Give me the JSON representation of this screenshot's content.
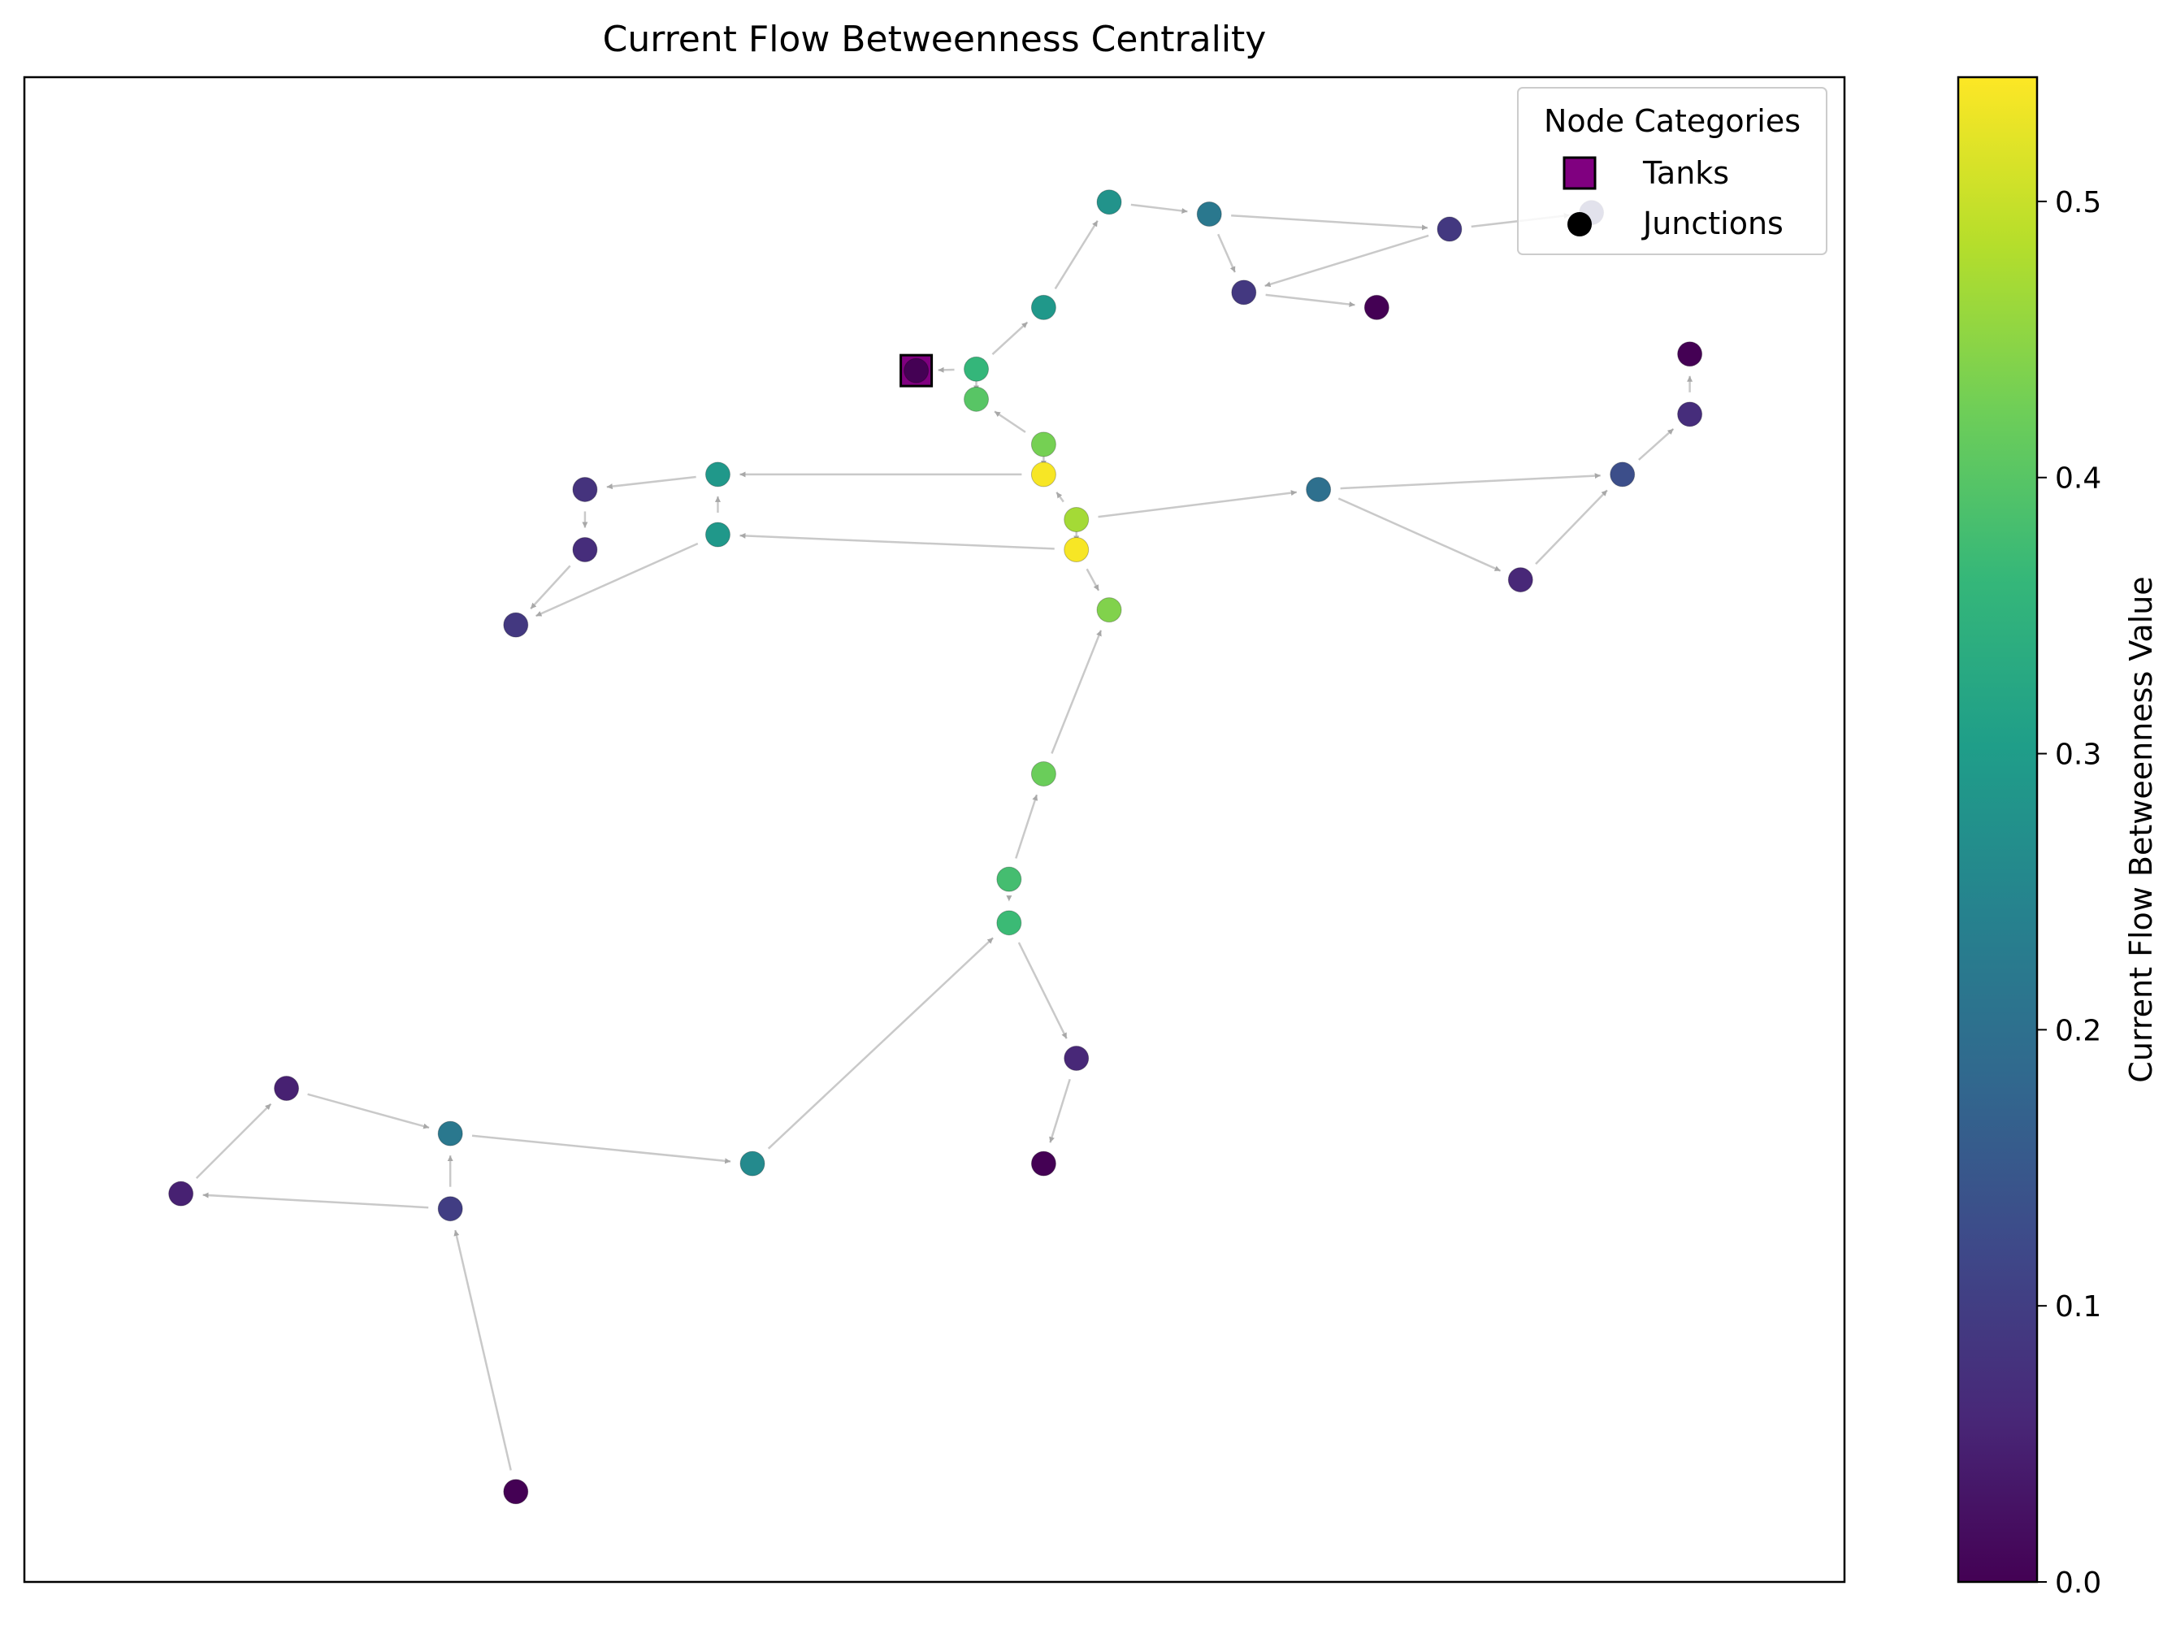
{
  "chart_data": {
    "type": "scatter",
    "subtype": "directed-network-graph",
    "title": "Current Flow Betweenness Centrality",
    "xlabel": "",
    "ylabel": "",
    "axes_ticks": false,
    "colormap": "viridis",
    "colormap_stops": [
      "#440154",
      "#482878",
      "#3e4989",
      "#31688e",
      "#26828e",
      "#1f9e89",
      "#35b779",
      "#6ece58",
      "#b5de2b",
      "#fde725"
    ],
    "colorbar": {
      "label": "Current Flow Betweenness Value",
      "range": [
        0.0,
        0.545
      ],
      "ticks": [
        0.0,
        0.1,
        0.2,
        0.3,
        0.4,
        0.5
      ],
      "tick_labels": [
        "0.0",
        "0.1",
        "0.2",
        "0.3",
        "0.4",
        "0.5"
      ]
    },
    "legend": {
      "title": "Node Categories",
      "placement": "top-right",
      "entries": [
        {
          "label": "Tanks",
          "marker": "square",
          "color": "#800080"
        },
        {
          "label": "Junctions",
          "marker": "circle",
          "color": "#000000"
        }
      ]
    },
    "edge_color": "#bbbbbb",
    "tank_border_color": "#000000",
    "xlim": [
      0,
      100
    ],
    "ylim": [
      0,
      100
    ],
    "nodes": [
      {
        "id": "t1",
        "x": 49.0,
        "y": 80.5,
        "value": 0.0,
        "category": "tank"
      },
      {
        "id": "n1",
        "x": 59.6,
        "y": 91.7,
        "value": 0.28
      },
      {
        "id": "n2",
        "x": 65.1,
        "y": 90.9,
        "value": 0.22
      },
      {
        "id": "n3",
        "x": 78.3,
        "y": 89.9,
        "value": 0.09
      },
      {
        "id": "n4",
        "x": 86.1,
        "y": 91.0,
        "value": 0.1
      },
      {
        "id": "n5",
        "x": 67.0,
        "y": 85.7,
        "value": 0.09
      },
      {
        "id": "n6",
        "x": 74.3,
        "y": 84.7,
        "value": 0.0
      },
      {
        "id": "n7",
        "x": 56.0,
        "y": 84.7,
        "value": 0.29
      },
      {
        "id": "n8",
        "x": 52.3,
        "y": 80.6,
        "value": 0.36
      },
      {
        "id": "n9",
        "x": 52.3,
        "y": 78.6,
        "value": 0.4
      },
      {
        "id": "n10",
        "x": 56.0,
        "y": 75.6,
        "value": 0.43
      },
      {
        "id": "n11",
        "x": 56.0,
        "y": 73.6,
        "value": 0.54
      },
      {
        "id": "n12",
        "x": 57.8,
        "y": 70.6,
        "value": 0.47
      },
      {
        "id": "n13",
        "x": 57.8,
        "y": 68.6,
        "value": 0.54
      },
      {
        "id": "n14",
        "x": 59.6,
        "y": 64.6,
        "value": 0.44
      },
      {
        "id": "n15",
        "x": 56.0,
        "y": 53.7,
        "value": 0.42
      },
      {
        "id": "n16",
        "x": 54.1,
        "y": 46.7,
        "value": 0.38
      },
      {
        "id": "n17",
        "x": 54.1,
        "y": 43.8,
        "value": 0.37
      },
      {
        "id": "n18",
        "x": 57.8,
        "y": 34.8,
        "value": 0.06
      },
      {
        "id": "n19",
        "x": 56.0,
        "y": 27.8,
        "value": 0.0
      },
      {
        "id": "n20",
        "x": 40.0,
        "y": 27.8,
        "value": 0.26
      },
      {
        "id": "n21",
        "x": 23.4,
        "y": 29.8,
        "value": 0.22
      },
      {
        "id": "n22",
        "x": 14.4,
        "y": 32.8,
        "value": 0.05
      },
      {
        "id": "n23",
        "x": 8.6,
        "y": 25.8,
        "value": 0.05
      },
      {
        "id": "n24",
        "x": 23.4,
        "y": 24.8,
        "value": 0.1
      },
      {
        "id": "n25",
        "x": 27.0,
        "y": 6.0,
        "value": 0.0
      },
      {
        "id": "n26",
        "x": 38.1,
        "y": 73.6,
        "value": 0.29
      },
      {
        "id": "n27",
        "x": 30.8,
        "y": 72.6,
        "value": 0.08
      },
      {
        "id": "n28",
        "x": 30.8,
        "y": 68.6,
        "value": 0.07
      },
      {
        "id": "n29",
        "x": 38.1,
        "y": 69.6,
        "value": 0.29
      },
      {
        "id": "n30",
        "x": 27.0,
        "y": 63.6,
        "value": 0.09
      },
      {
        "id": "n31",
        "x": 71.1,
        "y": 72.6,
        "value": 0.2
      },
      {
        "id": "n32",
        "x": 82.2,
        "y": 66.6,
        "value": 0.06
      },
      {
        "id": "n33",
        "x": 87.8,
        "y": 73.6,
        "value": 0.13
      },
      {
        "id": "n34",
        "x": 91.5,
        "y": 77.6,
        "value": 0.07
      },
      {
        "id": "n35",
        "x": 91.5,
        "y": 81.6,
        "value": 0.0
      }
    ],
    "edges": [
      [
        "n8",
        "t1"
      ],
      [
        "n8",
        "n7"
      ],
      [
        "n7",
        "n1"
      ],
      [
        "n1",
        "n2"
      ],
      [
        "n2",
        "n3"
      ],
      [
        "n2",
        "n5"
      ],
      [
        "n3",
        "n4"
      ],
      [
        "n3",
        "n5"
      ],
      [
        "n5",
        "n6"
      ],
      [
        "n9",
        "n8"
      ],
      [
        "n10",
        "n9"
      ],
      [
        "n11",
        "n10"
      ],
      [
        "n12",
        "n11"
      ],
      [
        "n13",
        "n12"
      ],
      [
        "n13",
        "n14"
      ],
      [
        "n15",
        "n14"
      ],
      [
        "n16",
        "n15"
      ],
      [
        "n17",
        "n16"
      ],
      [
        "n17",
        "n18"
      ],
      [
        "n18",
        "n19"
      ],
      [
        "n20",
        "n17"
      ],
      [
        "n21",
        "n20"
      ],
      [
        "n22",
        "n21"
      ],
      [
        "n23",
        "n22"
      ],
      [
        "n24",
        "n23"
      ],
      [
        "n24",
        "n21"
      ],
      [
        "n25",
        "n24"
      ],
      [
        "n11",
        "n26"
      ],
      [
        "n26",
        "n27"
      ],
      [
        "n27",
        "n28"
      ],
      [
        "n28",
        "n30"
      ],
      [
        "n13",
        "n29"
      ],
      [
        "n29",
        "n26"
      ],
      [
        "n29",
        "n30"
      ],
      [
        "n12",
        "n31"
      ],
      [
        "n31",
        "n33"
      ],
      [
        "n31",
        "n32"
      ],
      [
        "n32",
        "n33"
      ],
      [
        "n33",
        "n34"
      ],
      [
        "n34",
        "n35"
      ]
    ]
  }
}
